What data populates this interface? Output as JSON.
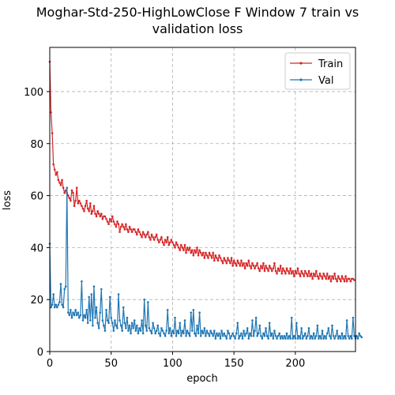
{
  "chart_data": {
    "type": "line",
    "title_lines": [
      "Moghar-Std-250-HighLowClose F Window 7 train vs",
      "validation loss"
    ],
    "xlabel": "epoch",
    "ylabel": "loss",
    "xlim": [
      0,
      249
    ],
    "ylim": [
      0,
      117
    ],
    "xticks": [
      0,
      50,
      100,
      150,
      200
    ],
    "yticks": [
      0,
      20,
      40,
      60,
      80,
      100
    ],
    "grid": true,
    "legend_position": "top-right",
    "series": [
      {
        "name": "Train",
        "color": "#d62728",
        "values": [
          111.5,
          92,
          84,
          72,
          70,
          68,
          69,
          66,
          65,
          64,
          66,
          63,
          61,
          62,
          61,
          60,
          59,
          58,
          62,
          61,
          56,
          58,
          63,
          57,
          58,
          57,
          56,
          55,
          54,
          56,
          58,
          55,
          54,
          57,
          53,
          54,
          56,
          53,
          52,
          54,
          53,
          52,
          53,
          51,
          52,
          52,
          51,
          50,
          49,
          51,
          50,
          52,
          50,
          49,
          48,
          50,
          49,
          46,
          48,
          49,
          48,
          47,
          49,
          47,
          46,
          48,
          47,
          46,
          47,
          47,
          46,
          45,
          47,
          46,
          45,
          44,
          46,
          45,
          44,
          45,
          46,
          44,
          43,
          45,
          44,
          43,
          44,
          45,
          43,
          42,
          43,
          44,
          42,
          41,
          43,
          42,
          44,
          41,
          42,
          43,
          42,
          41,
          40,
          42,
          41,
          40,
          39,
          41,
          40,
          39,
          41,
          38,
          40,
          39,
          40,
          38,
          39,
          37,
          39,
          38,
          40,
          37,
          39,
          38,
          37,
          38,
          36,
          38,
          37,
          36,
          38,
          37,
          36,
          38,
          35,
          37,
          36,
          35,
          37,
          36,
          35,
          34,
          36,
          35,
          34,
          36,
          35,
          34,
          36,
          33,
          35,
          34,
          33,
          35,
          34,
          33,
          35,
          33,
          34,
          32,
          34,
          33,
          35,
          33,
          32,
          34,
          33,
          32,
          33,
          34,
          32,
          31,
          33,
          32,
          34,
          31,
          33,
          32,
          31,
          33,
          32,
          31,
          32,
          34,
          31,
          30,
          32,
          31,
          33,
          30,
          32,
          31,
          30,
          32,
          31,
          30,
          32,
          30,
          31,
          29,
          31,
          30,
          32,
          30,
          29,
          31,
          30,
          29,
          31,
          30,
          29,
          31,
          29,
          30,
          28,
          30,
          29,
          31,
          29,
          28,
          30,
          29,
          28,
          30,
          29,
          28,
          30,
          28,
          29,
          27,
          29,
          28,
          30,
          28,
          27,
          29,
          28,
          27,
          29,
          28,
          27,
          29,
          27,
          28,
          28,
          27,
          28,
          28,
          27.5
        ]
      },
      {
        "name": "Val",
        "color": "#1f77b4",
        "values": [
          41.5,
          17,
          18,
          22,
          17,
          18,
          17,
          18,
          19,
          26,
          18,
          17,
          24,
          25,
          63,
          15,
          14,
          16,
          13,
          15,
          14,
          16,
          14,
          15,
          13,
          14,
          27,
          12,
          14,
          13,
          16,
          11,
          21,
          12,
          22,
          10,
          25,
          13,
          17,
          11,
          9,
          15,
          24,
          12,
          10,
          8,
          16,
          12,
          11,
          21,
          13,
          11,
          8,
          12,
          10,
          9,
          22,
          12,
          10,
          8,
          17,
          11,
          9,
          13,
          8,
          10,
          7,
          11,
          9,
          12,
          8,
          10,
          7,
          9,
          8,
          12,
          7,
          20,
          10,
          8,
          19,
          9,
          8,
          7,
          11,
          9,
          7,
          8,
          10,
          7,
          6,
          9,
          8,
          7,
          6,
          8,
          16,
          7,
          9,
          6,
          8,
          7,
          13,
          6,
          8,
          7,
          11,
          6,
          8,
          7,
          12,
          6,
          8,
          7,
          6,
          15,
          8,
          16,
          7,
          6,
          10,
          7,
          15,
          6,
          8,
          7,
          9,
          6,
          8,
          7,
          6,
          8,
          7,
          6,
          8,
          5,
          7,
          6,
          7,
          5,
          8,
          6,
          7,
          6,
          5,
          8,
          7,
          5,
          6,
          7,
          6,
          5,
          7,
          11,
          5,
          6,
          7,
          5,
          8,
          6,
          7,
          9,
          5,
          7,
          6,
          12,
          6,
          8,
          13,
          6,
          7,
          10,
          6,
          5,
          7,
          6,
          9,
          6,
          5,
          11,
          6,
          7,
          5,
          8,
          6,
          5,
          6,
          7,
          5,
          6,
          5,
          6,
          5,
          7,
          5,
          6,
          5,
          13,
          5,
          6,
          5,
          11,
          5,
          6,
          5,
          9,
          5,
          6,
          7,
          5,
          6,
          9,
          5,
          6,
          5,
          7,
          5,
          6,
          10,
          5,
          6,
          5,
          8,
          5,
          6,
          5,
          7,
          9,
          6,
          5,
          10,
          6,
          5,
          6,
          8,
          5,
          6,
          5,
          7,
          5,
          6,
          5,
          12,
          6,
          5,
          6,
          5,
          13,
          6,
          5,
          6,
          5,
          7,
          6,
          5.5
        ]
      }
    ]
  }
}
